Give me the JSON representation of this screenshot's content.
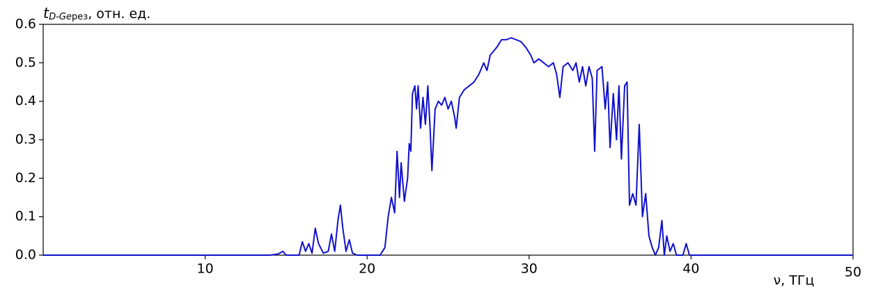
{
  "chart_data": {
    "type": "line",
    "ylabel": {
      "symbol": "t",
      "subscript_italic": "D-Ge",
      "subscript": "рез",
      "text": ", отн. ед."
    },
    "xlabel": "ν, ТГц",
    "xlim": [
      0,
      50
    ],
    "xticks": [
      10,
      20,
      30,
      40,
      50
    ],
    "ylim": [
      0,
      0.6
    ],
    "yticks": [
      {
        "value": 0,
        "label": "0.0"
      },
      0.1,
      0.2,
      0.3,
      0.4,
      0.5,
      0.6
    ],
    "grid": false,
    "series": [
      {
        "color": "#1010cc",
        "x": [
          0,
          14,
          14.5,
          14.8,
          15.0,
          15.8,
          16.0,
          16.2,
          16.4,
          16.6,
          16.8,
          17.0,
          17.3,
          17.6,
          17.8,
          18.0,
          18.2,
          18.35,
          18.5,
          18.7,
          18.9,
          19.1,
          19.4,
          20.8,
          21.1,
          21.3,
          21.5,
          21.7,
          21.85,
          22.0,
          22.1,
          22.3,
          22.5,
          22.6,
          22.7,
          22.8,
          22.95,
          23.05,
          23.15,
          23.3,
          23.45,
          23.6,
          23.75,
          23.9,
          24.0,
          24.2,
          24.4,
          24.6,
          24.8,
          25.0,
          25.2,
          25.4,
          25.5,
          25.7,
          26.0,
          26.3,
          26.6,
          26.9,
          27.2,
          27.4,
          27.6,
          27.8,
          28.0,
          28.3,
          28.6,
          28.9,
          29.2,
          29.5,
          29.8,
          30.1,
          30.3,
          30.6,
          30.9,
          31.2,
          31.5,
          31.7,
          31.9,
          32.1,
          32.4,
          32.7,
          32.9,
          33.1,
          33.3,
          33.5,
          33.7,
          33.9,
          34.05,
          34.2,
          34.5,
          34.7,
          34.85,
          35.0,
          35.2,
          35.4,
          35.55,
          35.7,
          35.9,
          36.05,
          36.2,
          36.4,
          36.6,
          36.8,
          37.0,
          37.2,
          37.4,
          37.6,
          37.8,
          38.0,
          38.2,
          38.35,
          38.5,
          38.7,
          38.9,
          39.1,
          39.5,
          39.7,
          39.9,
          40.2,
          50
        ],
        "values": [
          0,
          0,
          0.003,
          0.01,
          0,
          0,
          0.035,
          0.01,
          0.03,
          0.005,
          0.07,
          0.03,
          0.005,
          0.01,
          0.055,
          0.01,
          0.09,
          0.13,
          0.07,
          0.01,
          0.04,
          0.005,
          0,
          0,
          0.02,
          0.1,
          0.15,
          0.11,
          0.27,
          0.15,
          0.24,
          0.14,
          0.2,
          0.29,
          0.27,
          0.42,
          0.44,
          0.38,
          0.44,
          0.33,
          0.41,
          0.34,
          0.44,
          0.32,
          0.22,
          0.38,
          0.4,
          0.39,
          0.41,
          0.38,
          0.4,
          0.36,
          0.33,
          0.41,
          0.43,
          0.44,
          0.45,
          0.47,
          0.5,
          0.48,
          0.52,
          0.53,
          0.54,
          0.56,
          0.56,
          0.565,
          0.56,
          0.555,
          0.54,
          0.52,
          0.5,
          0.51,
          0.5,
          0.49,
          0.5,
          0.47,
          0.41,
          0.49,
          0.5,
          0.48,
          0.5,
          0.45,
          0.49,
          0.44,
          0.49,
          0.46,
          0.27,
          0.48,
          0.49,
          0.38,
          0.45,
          0.28,
          0.42,
          0.3,
          0.44,
          0.25,
          0.44,
          0.45,
          0.13,
          0.16,
          0.13,
          0.34,
          0.1,
          0.16,
          0.05,
          0.02,
          0,
          0.02,
          0.09,
          0,
          0.05,
          0.01,
          0.03,
          0,
          0,
          0.03,
          0,
          0,
          0
        ]
      }
    ]
  }
}
